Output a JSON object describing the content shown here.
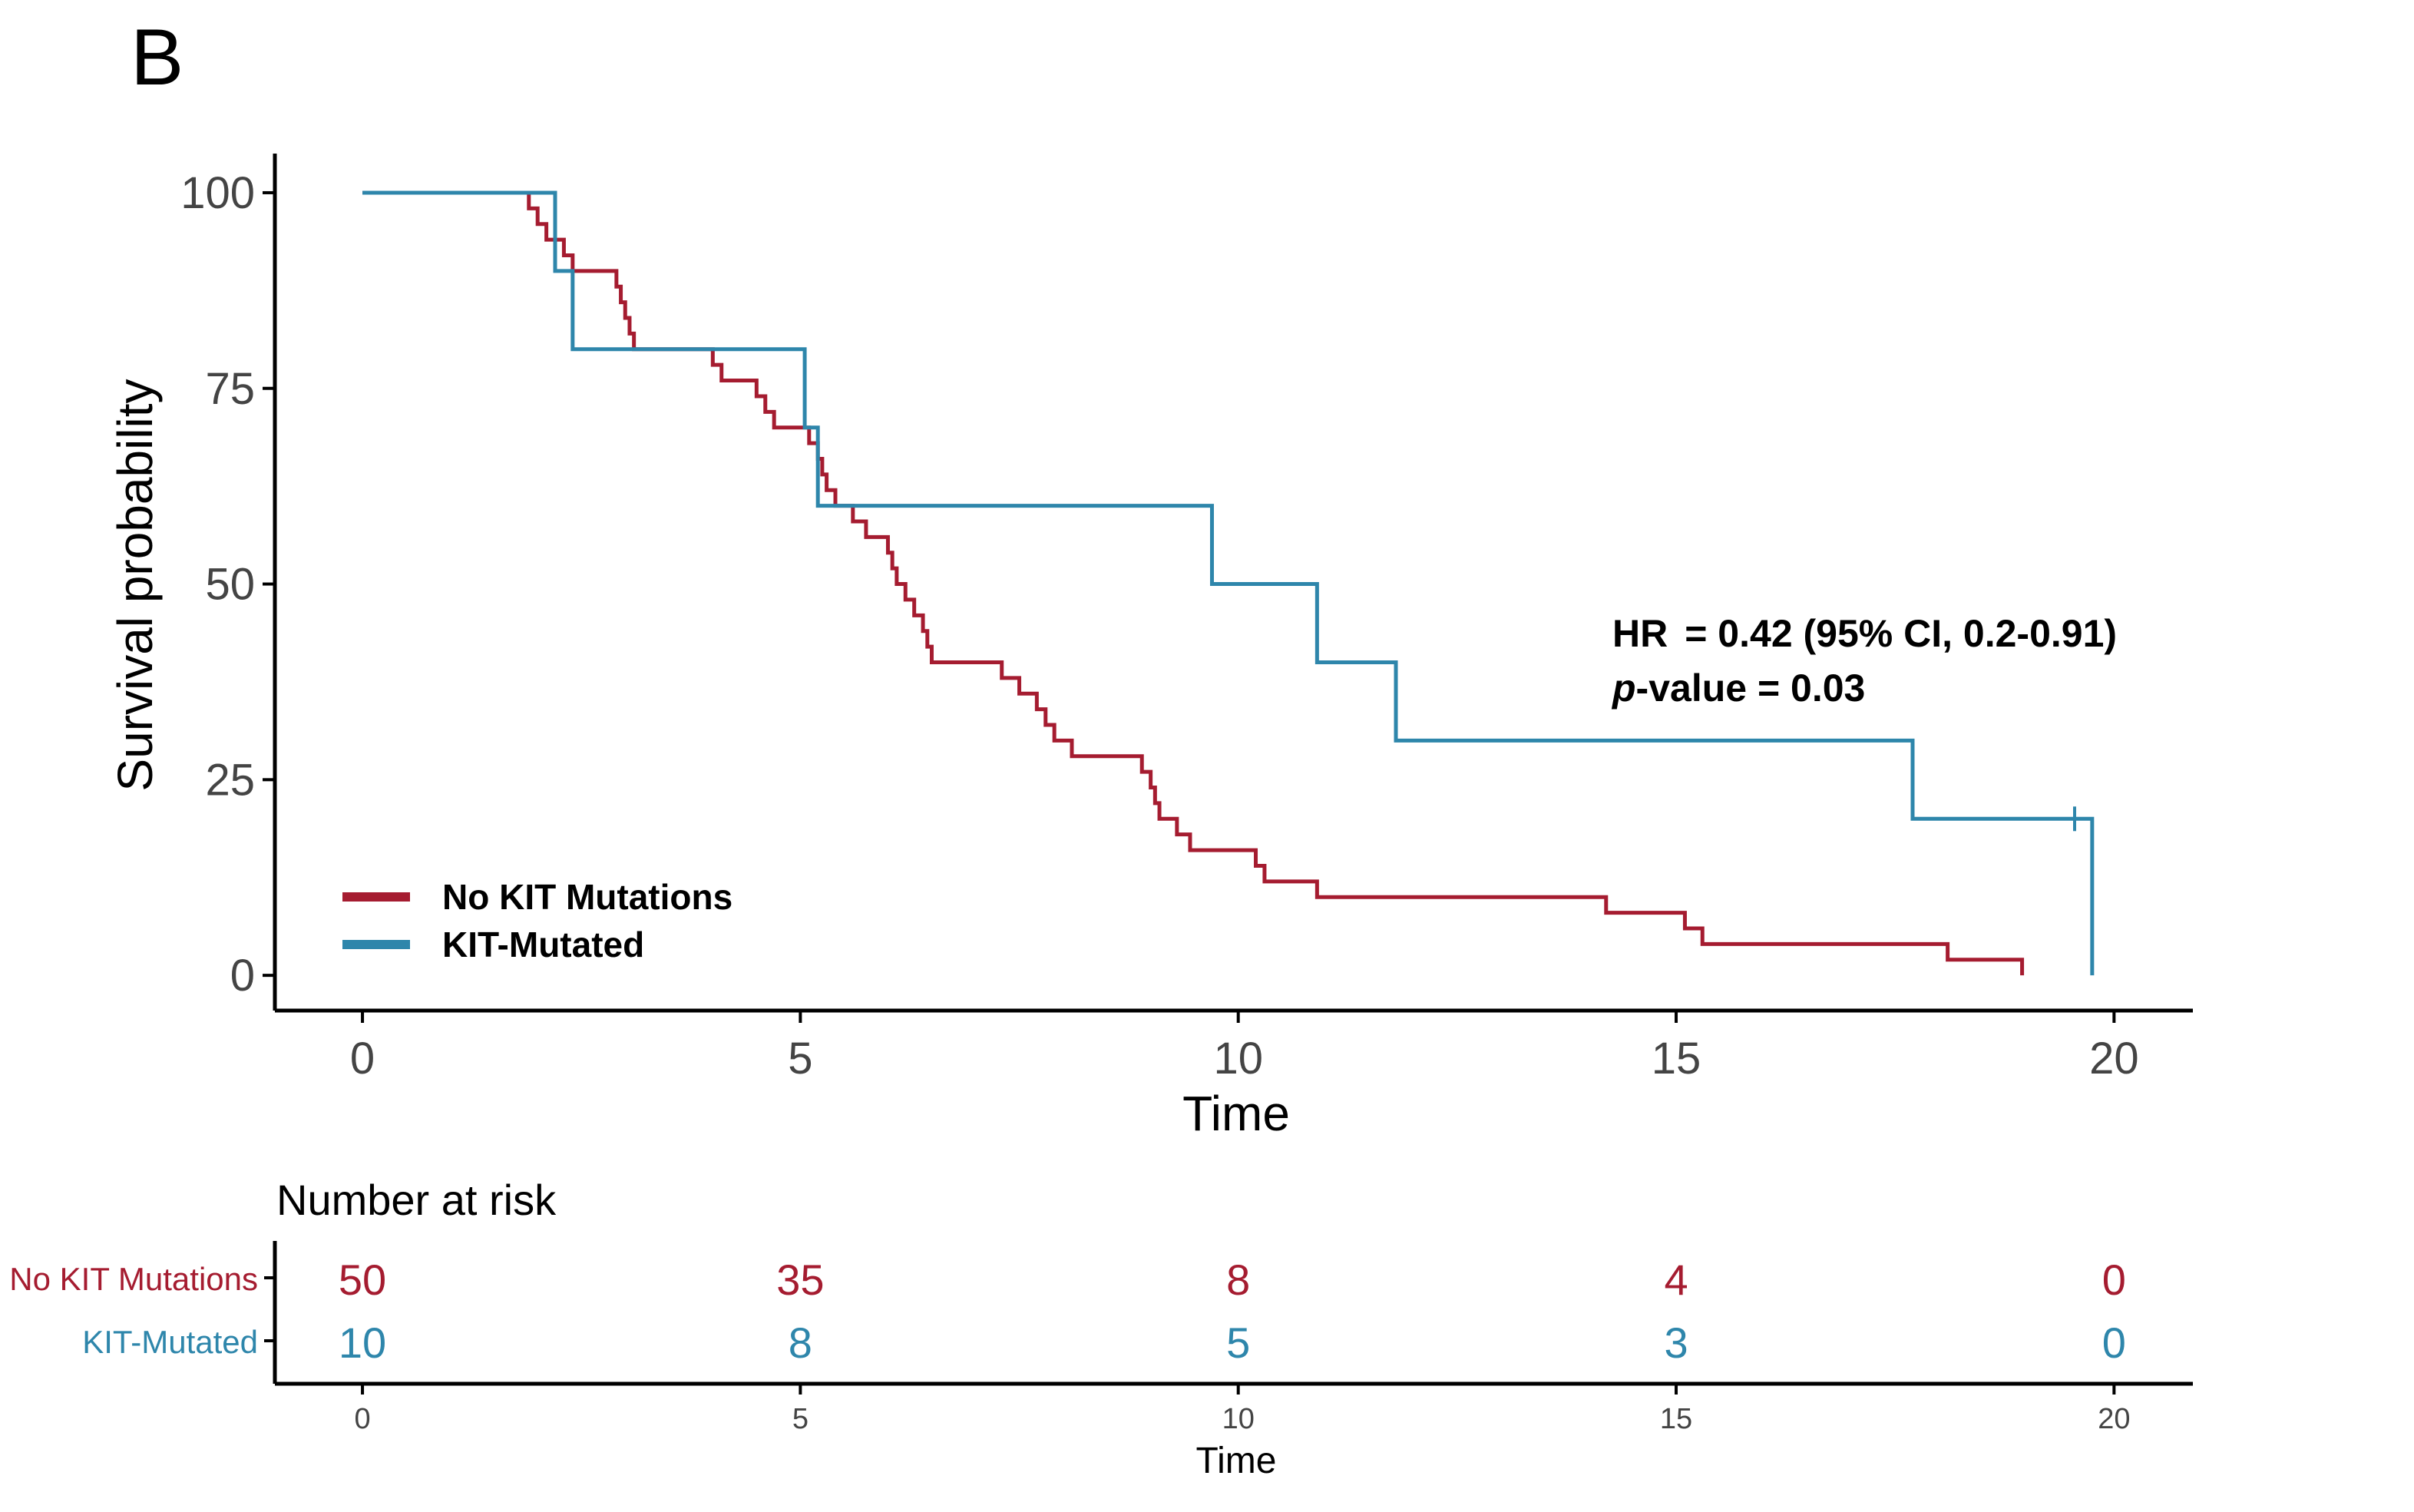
{
  "panel_label": "B",
  "colors": {
    "no_kit": "#A51C30",
    "kit": "#2E86AB",
    "axis": "#000000",
    "tick_text": "#444444"
  },
  "chart_data": {
    "type": "line",
    "subtype": "kaplan-meier",
    "xlabel": "Time",
    "ylabel": "Survival probability",
    "xlim": [
      -1.0,
      20.9
    ],
    "ylim": [
      -4.5,
      105
    ],
    "xticks": [
      0,
      5,
      10,
      15,
      20
    ],
    "yticks": [
      0,
      25,
      50,
      75,
      100
    ],
    "xtick_labels": [
      "0",
      "5",
      "10",
      "15",
      "20"
    ],
    "ytick_labels": [
      "0",
      "25",
      "50",
      "75",
      "100"
    ],
    "legend_position": "bottom-left",
    "annotation": {
      "hr_label": "HR",
      "hr_text": "= 0.42 (95% CI, 0.2-0.91)",
      "p_label": "p",
      "p_text": "-value = 0.03"
    },
    "series": [
      {
        "name": "No KIT Mutations",
        "color": "#A51C30",
        "steps": [
          [
            0,
            100
          ],
          [
            1.9,
            98
          ],
          [
            2.0,
            96
          ],
          [
            2.1,
            94
          ],
          [
            2.3,
            92
          ],
          [
            2.4,
            90
          ],
          [
            2.9,
            88
          ],
          [
            2.95,
            86
          ],
          [
            3.0,
            84
          ],
          [
            3.05,
            82
          ],
          [
            3.1,
            80
          ],
          [
            4.0,
            78
          ],
          [
            4.1,
            76
          ],
          [
            4.5,
            74
          ],
          [
            4.6,
            72
          ],
          [
            4.7,
            70
          ],
          [
            5.1,
            68
          ],
          [
            5.2,
            66
          ],
          [
            5.25,
            64
          ],
          [
            5.3,
            62
          ],
          [
            5.4,
            60
          ],
          [
            5.6,
            58
          ],
          [
            5.75,
            56
          ],
          [
            6.0,
            54
          ],
          [
            6.05,
            52
          ],
          [
            6.1,
            50
          ],
          [
            6.2,
            48
          ],
          [
            6.3,
            46
          ],
          [
            6.4,
            44
          ],
          [
            6.45,
            42
          ],
          [
            6.5,
            40
          ],
          [
            7.3,
            38
          ],
          [
            7.5,
            36
          ],
          [
            7.7,
            34
          ],
          [
            7.8,
            32
          ],
          [
            7.9,
            30
          ],
          [
            8.1,
            28
          ],
          [
            8.9,
            26
          ],
          [
            9.0,
            24
          ],
          [
            9.05,
            22
          ],
          [
            9.1,
            20
          ],
          [
            9.3,
            18
          ],
          [
            9.45,
            16
          ],
          [
            10.2,
            14
          ],
          [
            10.3,
            12
          ],
          [
            10.9,
            10
          ],
          [
            14.2,
            8
          ],
          [
            15.1,
            6
          ],
          [
            15.3,
            4
          ],
          [
            18.1,
            2
          ],
          [
            18.95,
            0
          ]
        ],
        "end": 18.95
      },
      {
        "name": "KIT-Mutated",
        "color": "#2E86AB",
        "steps": [
          [
            0,
            100
          ],
          [
            2.2,
            90
          ],
          [
            2.4,
            80
          ],
          [
            5.05,
            70
          ],
          [
            5.2,
            60
          ],
          [
            9.7,
            50
          ],
          [
            10.9,
            40
          ],
          [
            11.8,
            30
          ],
          [
            17.7,
            20
          ],
          [
            19.75,
            0
          ]
        ],
        "end": 19.75,
        "censored": [
          [
            19.55,
            20
          ]
        ]
      }
    ]
  },
  "risk_table": {
    "title": "Number at risk",
    "time_label": "Time",
    "times": [
      0,
      5,
      10,
      15,
      20
    ],
    "time_labels": [
      "0",
      "5",
      "10",
      "15",
      "20"
    ],
    "rows": [
      {
        "name": "No KIT Mutations",
        "color": "#A51C30",
        "counts": [
          "50",
          "35",
          "8",
          "4",
          "0"
        ]
      },
      {
        "name": "KIT-Mutated",
        "color": "#2E86AB",
        "counts": [
          "10",
          "8",
          "5",
          "3",
          "0"
        ]
      }
    ]
  }
}
